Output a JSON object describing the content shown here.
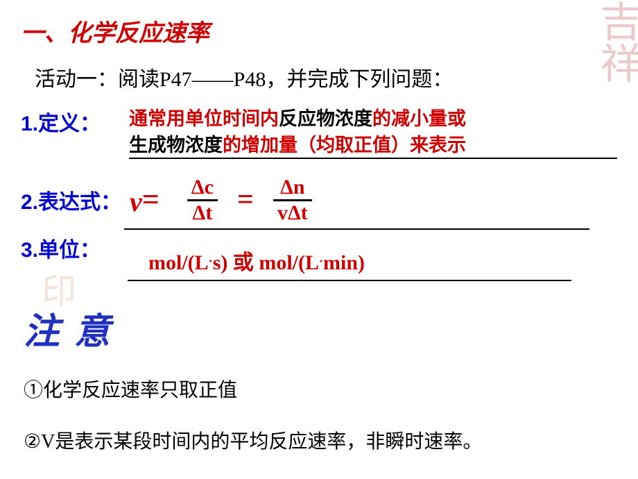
{
  "colors": {
    "red": "#d00000",
    "blue_label": "#0000d0",
    "blue_note": "#2030c0",
    "black": "#000000",
    "bg": "#ffffff"
  },
  "title": "一、化学反应速率",
  "activity": "活动一：阅读P47——P48，并完成下列问题：",
  "item1": {
    "label": "1.定义：",
    "line1_parts": {
      "a": "通常用单位时间内",
      "b": "反应物浓度",
      "c": "的减小量或"
    },
    "line2_parts": {
      "a": "生成物浓度",
      "b": "的增加量（均取正值）来表示"
    }
  },
  "item2": {
    "label": "2.表达式：",
    "lhs_v": "v",
    "lhs_eq": "=",
    "frac1": {
      "num": "Δc",
      "den": "Δt"
    },
    "mid_eq": "=",
    "frac2": {
      "num": "Δn",
      "den": "vΔt"
    }
  },
  "item3": {
    "label": "3.单位：",
    "text_parts": {
      "a": "mol/(L",
      "dot1": "·",
      "b": "s) ",
      "or": "或",
      "c": " mol/(L",
      "dot2": "·",
      "d": "min)"
    }
  },
  "note_header": "注 意",
  "note1": "①化学反应速率只取正值",
  "note2": "②V是表示某段时间内的平均反应速率，非瞬时速率。",
  "watermarks": {
    "tr": "吉祥",
    "bl": "印"
  }
}
